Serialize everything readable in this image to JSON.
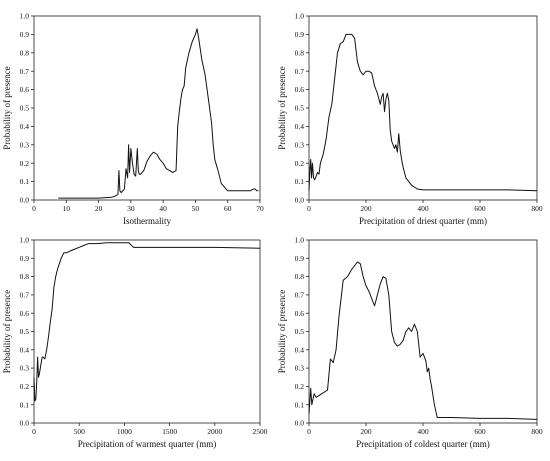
{
  "figure": {
    "background": "#ffffff",
    "line_color": "#111111"
  },
  "chart_data": [
    {
      "type": "line",
      "xlabel": "Isothermality",
      "ylabel": "Probability of presence",
      "xlim": [
        0,
        70
      ],
      "ylim": [
        0,
        1.0
      ],
      "xticks": [
        0,
        10,
        20,
        30,
        40,
        50,
        60,
        70
      ],
      "xtick_labels": [
        "0",
        "10",
        "20",
        "30",
        "40",
        "50",
        "60",
        "70"
      ],
      "yticks": [
        0,
        0.1,
        0.2,
        0.3,
        0.4,
        0.5,
        0.6,
        0.7,
        0.8,
        0.9,
        1.0
      ],
      "ytick_labels": [
        "0.0",
        "0.1",
        "0.2",
        "0.3",
        "0.4",
        "0.5",
        "0.6",
        "0.7",
        "0.8",
        "0.9",
        "1.0"
      ],
      "grid": false,
      "series": [
        {
          "x": [
            7.5,
            15,
            20,
            24,
            25,
            26,
            26.3,
            26.6,
            27,
            28,
            28.5,
            29,
            29.3,
            29.6,
            30,
            30.5,
            31,
            31.5,
            32,
            32.3,
            32.6,
            33,
            34,
            35,
            36,
            37,
            38,
            39,
            40,
            41,
            42,
            43,
            44,
            44.5,
            45,
            45.5,
            46,
            46.5,
            47,
            48,
            49,
            50,
            50.5,
            51,
            52,
            53,
            54,
            55,
            55.5,
            56,
            57,
            58,
            59,
            60,
            61,
            62,
            63,
            64,
            65,
            66,
            67,
            68,
            68.5,
            69,
            69.5
          ],
          "y": [
            0.01,
            0.01,
            0.01,
            0.015,
            0.02,
            0.03,
            0.16,
            0.05,
            0.04,
            0.06,
            0.17,
            0.12,
            0.3,
            0.15,
            0.28,
            0.2,
            0.14,
            0.13,
            0.28,
            0.16,
            0.14,
            0.14,
            0.16,
            0.21,
            0.24,
            0.26,
            0.25,
            0.22,
            0.2,
            0.17,
            0.16,
            0.15,
            0.16,
            0.4,
            0.48,
            0.55,
            0.6,
            0.62,
            0.72,
            0.8,
            0.86,
            0.9,
            0.93,
            0.88,
            0.76,
            0.68,
            0.55,
            0.42,
            0.3,
            0.22,
            0.16,
            0.09,
            0.07,
            0.05,
            0.05,
            0.05,
            0.05,
            0.05,
            0.05,
            0.05,
            0.05,
            0.06,
            0.06,
            0.05,
            0.05
          ]
        }
      ]
    },
    {
      "type": "line",
      "xlabel": "Precipitation of driest quarter (mm)",
      "ylabel": "Probability of presence",
      "xlim": [
        0,
        800
      ],
      "ylim": [
        0,
        1.0
      ],
      "xticks": [
        0,
        200,
        400,
        600,
        800
      ],
      "xtick_labels": [
        "0",
        "200",
        "400",
        "600",
        "800"
      ],
      "yticks": [
        0,
        0.1,
        0.2,
        0.3,
        0.4,
        0.5,
        0.6,
        0.7,
        0.8,
        0.9,
        1.0
      ],
      "ytick_labels": [
        "0.0",
        "0.1",
        "0.2",
        "0.3",
        "0.4",
        "0.5",
        "0.6",
        "0.7",
        "0.8",
        "0.9",
        "1.0"
      ],
      "grid": false,
      "series": [
        {
          "x": [
            0,
            3,
            6,
            9,
            12,
            16,
            20,
            25,
            30,
            35,
            40,
            50,
            60,
            70,
            80,
            90,
            100,
            110,
            120,
            130,
            140,
            150,
            160,
            170,
            180,
            190,
            200,
            210,
            220,
            230,
            240,
            250,
            255,
            260,
            265,
            270,
            275,
            280,
            285,
            290,
            295,
            300,
            305,
            310,
            315,
            320,
            325,
            330,
            340,
            350,
            360,
            370,
            380,
            400,
            500,
            600,
            700,
            800
          ],
          "y": [
            0.05,
            0.16,
            0.22,
            0.12,
            0.2,
            0.12,
            0.11,
            0.13,
            0.15,
            0.14,
            0.2,
            0.25,
            0.33,
            0.45,
            0.52,
            0.66,
            0.8,
            0.85,
            0.86,
            0.9,
            0.9,
            0.9,
            0.88,
            0.75,
            0.7,
            0.68,
            0.7,
            0.7,
            0.69,
            0.62,
            0.58,
            0.52,
            0.56,
            0.58,
            0.48,
            0.55,
            0.58,
            0.54,
            0.38,
            0.32,
            0.3,
            0.28,
            0.3,
            0.26,
            0.36,
            0.27,
            0.22,
            0.18,
            0.12,
            0.1,
            0.08,
            0.07,
            0.06,
            0.055,
            0.055,
            0.055,
            0.055,
            0.05
          ]
        }
      ]
    },
    {
      "type": "line",
      "xlabel": "Precipitation of warmest quarter (mm)",
      "ylabel": "Probability of presence",
      "xlim": [
        0,
        2500
      ],
      "ylim": [
        0,
        1.0
      ],
      "xticks": [
        0,
        500,
        1000,
        1500,
        2000,
        2500
      ],
      "xtick_labels": [
        "0",
        "500",
        "1000",
        "1500",
        "2000",
        "2500"
      ],
      "yticks": [
        0,
        0.1,
        0.2,
        0.3,
        0.4,
        0.5,
        0.6,
        0.7,
        0.8,
        0.9,
        1.0
      ],
      "ytick_labels": [
        "0.0",
        "0.1",
        "0.2",
        "0.3",
        "0.4",
        "0.5",
        "0.6",
        "0.7",
        "0.8",
        "0.9",
        "1.0"
      ],
      "grid": false,
      "series": [
        {
          "x": [
            0,
            10,
            20,
            30,
            40,
            50,
            60,
            70,
            80,
            90,
            100,
            120,
            140,
            160,
            180,
            200,
            220,
            240,
            260,
            280,
            300,
            330,
            360,
            400,
            450,
            500,
            550,
            600,
            650,
            700,
            800,
            900,
            1000,
            1050,
            1100,
            1500,
            2000,
            2500
          ],
          "y": [
            0.25,
            0.12,
            0.13,
            0.22,
            0.36,
            0.25,
            0.27,
            0.3,
            0.33,
            0.36,
            0.36,
            0.35,
            0.4,
            0.47,
            0.55,
            0.62,
            0.74,
            0.8,
            0.84,
            0.87,
            0.9,
            0.93,
            0.93,
            0.94,
            0.95,
            0.96,
            0.97,
            0.98,
            0.98,
            0.98,
            0.985,
            0.985,
            0.985,
            0.985,
            0.96,
            0.96,
            0.96,
            0.955
          ]
        }
      ]
    },
    {
      "type": "line",
      "xlabel": "Precipitation of coldest quarter (mm)",
      "ylabel": "Probability of presence",
      "xlim": [
        0,
        800
      ],
      "ylim": [
        0,
        1.0
      ],
      "xticks": [
        0,
        200,
        400,
        600,
        800
      ],
      "xtick_labels": [
        "0",
        "200",
        "400",
        "600",
        "800"
      ],
      "yticks": [
        0,
        0.1,
        0.2,
        0.3,
        0.4,
        0.5,
        0.6,
        0.7,
        0.8,
        0.9,
        1.0
      ],
      "ytick_labels": [
        "0.0",
        "0.1",
        "0.2",
        "0.3",
        "0.4",
        "0.5",
        "0.6",
        "0.7",
        "0.8",
        "0.9",
        "1.0"
      ],
      "grid": false,
      "series": [
        {
          "x": [
            0,
            3,
            6,
            10,
            14,
            18,
            25,
            35,
            45,
            55,
            65,
            75,
            85,
            95,
            105,
            120,
            135,
            150,
            160,
            170,
            180,
            190,
            200,
            210,
            220,
            230,
            240,
            250,
            260,
            270,
            280,
            290,
            300,
            310,
            320,
            330,
            340,
            350,
            360,
            370,
            380,
            390,
            400,
            410,
            415,
            420,
            425,
            430,
            440,
            450,
            500,
            600,
            700,
            800
          ],
          "y": [
            0.05,
            0.12,
            0.19,
            0.1,
            0.13,
            0.16,
            0.14,
            0.15,
            0.16,
            0.17,
            0.18,
            0.35,
            0.33,
            0.4,
            0.58,
            0.78,
            0.8,
            0.84,
            0.86,
            0.88,
            0.87,
            0.8,
            0.75,
            0.72,
            0.68,
            0.64,
            0.7,
            0.76,
            0.8,
            0.79,
            0.7,
            0.5,
            0.44,
            0.42,
            0.43,
            0.45,
            0.5,
            0.52,
            0.5,
            0.54,
            0.5,
            0.36,
            0.38,
            0.34,
            0.28,
            0.3,
            0.24,
            0.2,
            0.1,
            0.03,
            0.03,
            0.025,
            0.025,
            0.02
          ]
        }
      ]
    }
  ]
}
